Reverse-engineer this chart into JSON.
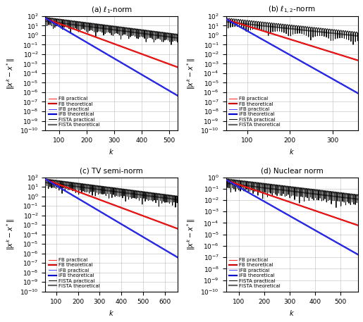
{
  "subplots": [
    {
      "title": "(a) $\\ell_1$-norm",
      "xmax": 530,
      "xmin": 50,
      "xticks": [
        100,
        200,
        300,
        400,
        500
      ],
      "ylim_low": 1e-10,
      "ylim_high": 100.0,
      "ytick_labels": [
        "$10^{-10}$",
        "",
        "$10^{-6}$",
        "",
        "$10^{-2}$",
        "",
        "$10^{2}$"
      ],
      "fb_rate": 0.0245,
      "ifb_rate": 0.039,
      "fista_env_rate": 0.0085,
      "fista_theo_rate": 0.0085,
      "y0_fb": 55.0,
      "y0_ifb": 60.0,
      "y0_fista": 22.0,
      "y0_fista_theo": 30.0,
      "fista_osc_freq": 0.55,
      "fista_osc_spike": 3.5
    },
    {
      "title": "(b) $\\ell_{1,2}$-norm",
      "xmax": 360,
      "xmin": 50,
      "xticks": [
        100,
        200,
        300
      ],
      "ylim_low": 1e-10,
      "ylim_high": 100.0,
      "ytick_labels": [
        "$10^{-10}$",
        "",
        "$10^{-6}$",
        "",
        "$10^{-2}$",
        "",
        "$10^{2}$"
      ],
      "fb_rate": 0.032,
      "ifb_rate": 0.058,
      "fista_env_rate": 0.011,
      "fista_theo_rate": 0.011,
      "y0_fb": 45.0,
      "y0_ifb": 50.0,
      "y0_fista": 18.0,
      "y0_fista_theo": 25.0,
      "fista_osc_freq": 0.6,
      "fista_osc_spike": 3.5
    },
    {
      "title": "(c) TV semi-norm",
      "xmax": 660,
      "xmin": 50,
      "xticks": [
        100,
        200,
        300,
        400,
        500,
        600
      ],
      "ylim_low": 1e-10,
      "ylim_high": 100.0,
      "ytick_labels": [
        "$10^{-10}$",
        "",
        "$10^{-6}$",
        "",
        "$10^{-2}$",
        "",
        "$10^{2}$"
      ],
      "fb_rate": 0.0195,
      "ifb_rate": 0.031,
      "fista_env_rate": 0.0068,
      "fista_theo_rate": 0.0068,
      "y0_fb": 58.0,
      "y0_ifb": 63.0,
      "y0_fista": 20.0,
      "y0_fista_theo": 28.0,
      "fista_osc_freq": 0.45,
      "fista_osc_spike": 3.5
    },
    {
      "title": "(d) Nuclear norm",
      "xmax": 570,
      "xmin": 50,
      "xticks": [
        100,
        200,
        300,
        400,
        500
      ],
      "ylim_low": 1e-10,
      "ylim_high": 1.0,
      "ytick_labels": [
        "$10^{-10}$",
        "",
        "$10^{-6}$",
        "",
        "$10^{-2}$",
        "",
        "$10^{0}$"
      ],
      "fb_rate": 0.0175,
      "ifb_rate": 0.029,
      "fista_env_rate": 0.0062,
      "fista_theo_rate": 0.0062,
      "y0_fb": 0.55,
      "y0_ifb": 0.6,
      "y0_fista": 0.22,
      "y0_fista_theo": 0.3,
      "fista_osc_freq": 0.5,
      "fista_osc_spike": 3.5
    }
  ],
  "ylabel": "$\\|x^k - x^*\\|$",
  "xlabel": "$k$",
  "legend_labels": [
    "FB practical",
    "FB theoretical",
    "iFB practical",
    "iFB theoretical",
    "FISTA practical",
    "FISTA theoretical"
  ],
  "colors": {
    "fb_practical": "#ff2020",
    "fb_theoretical": "#cc0000",
    "ifb_practical": "#4040ff",
    "ifb_theoretical": "#0000cc",
    "fista_practical": "#000000",
    "fista_theoretical": "#666666"
  },
  "lw_practical": 0.7,
  "lw_theoretical": 1.6
}
